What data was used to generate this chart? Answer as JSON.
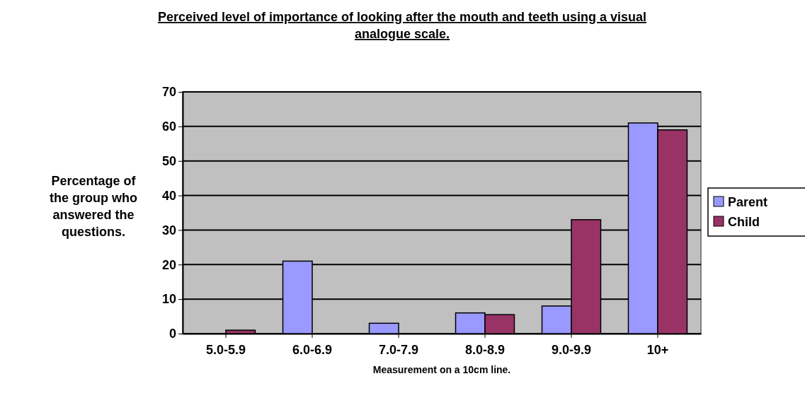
{
  "chart_data": {
    "type": "bar",
    "title": "Perceived level of importance of looking after the mouth and teeth using a visual analogue scale.",
    "xlabel": "Measurement on a 10cm line.",
    "ylabel": "Percentage of the group who answered the questions.",
    "categories": [
      "5.0-5.9",
      "6.0-6.9",
      "7.0-7.9",
      "8.0-8.9",
      "9.0-9.9",
      "10+"
    ],
    "series": [
      {
        "name": "Parent",
        "color": "#9999ff",
        "values": [
          0,
          21,
          3,
          6,
          8,
          61
        ]
      },
      {
        "name": "Child",
        "color": "#993366",
        "values": [
          1,
          0,
          0,
          5.5,
          33,
          59
        ]
      }
    ],
    "ylim": [
      0,
      70
    ],
    "yticks": [
      0,
      10,
      20,
      30,
      40,
      50,
      60,
      70
    ],
    "grid": "y",
    "legend": "right"
  }
}
